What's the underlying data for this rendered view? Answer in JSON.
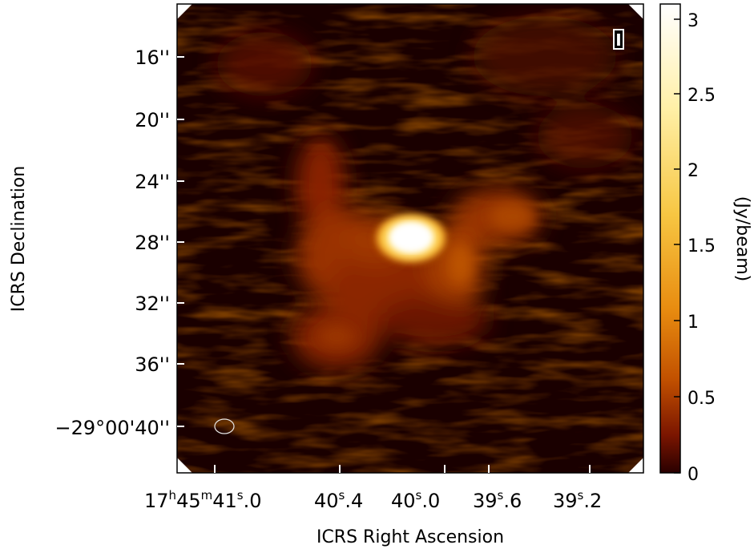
{
  "image": {
    "stokes_label": "I",
    "colormap": "afmhot",
    "description_of_content": "radio continuum map with bright compact core and extended emission",
    "beam_shape": "ellipse"
  },
  "axes": {
    "x_title": "ICRS Right Ascension",
    "y_title": "ICRS Declination",
    "x_ticks": [
      {
        "h": "17",
        "m": "45",
        "s": "41",
        "frac": "0"
      },
      {
        "s": "40",
        "frac": "4"
      },
      {
        "s": "40",
        "frac": "0"
      },
      {
        "s": "39",
        "frac": "6"
      },
      {
        "s": "39",
        "frac": "2"
      }
    ],
    "y_ticks": [
      "16''",
      "20''",
      "24''",
      "28''",
      "32''",
      "36''",
      "−29°00'40''"
    ]
  },
  "colorbar": {
    "label": "(Jy/beam)",
    "ticks": [
      "0",
      "0.5",
      "1",
      "1.5",
      "2",
      "2.5",
      "3"
    ],
    "min": 0,
    "max": 3.1,
    "colors": [
      "#2a0000",
      "#7a1500",
      "#c25100",
      "#e88c10",
      "#f7c642",
      "#fff0a8",
      "#ffffff"
    ]
  }
}
